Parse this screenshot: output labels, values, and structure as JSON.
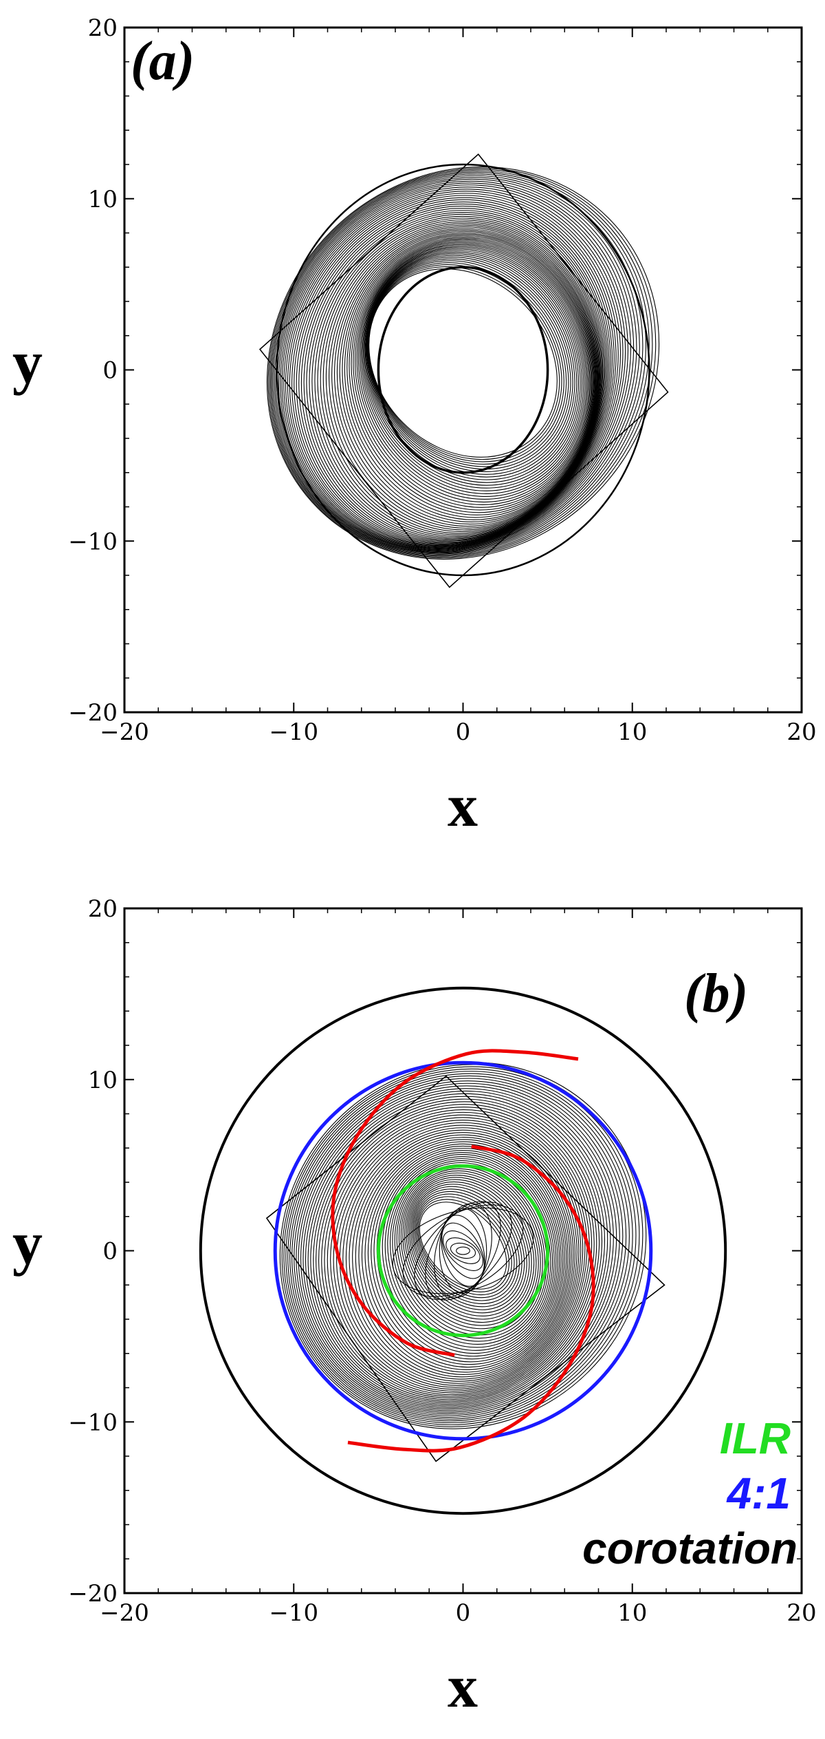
{
  "chart_data": [
    {
      "type": "line",
      "panel_label": "(a)",
      "xlabel": "x",
      "ylabel": "y",
      "xlim": [
        -20,
        20
      ],
      "ylim": [
        -20,
        20
      ],
      "xticks": [
        -20,
        -10,
        0,
        10,
        20
      ],
      "yticks": [
        -20,
        -10,
        0,
        10,
        20
      ],
      "xtick_labels": [
        "−20",
        "−10",
        "0",
        "10",
        "20"
      ],
      "ytick_labels": [
        "−20",
        "−10",
        "0",
        "10",
        "20"
      ],
      "grid": false,
      "series": [
        {
          "kind": "orbit_envelope",
          "color": "#000000",
          "inner_ellipse": {
            "cx": 0,
            "cy": 0,
            "rx": 5,
            "ry": 6
          },
          "outer_ring": {
            "rx": 11,
            "ry": 12
          },
          "outer_square_vertices": [
            [
              0.9,
              12.6
            ],
            [
              12.1,
              -1.3
            ],
            [
              -0.8,
              -12.7
            ],
            [
              -12.0,
              1.2
            ]
          ],
          "loops": 60
        }
      ]
    },
    {
      "type": "line",
      "panel_label": "(b)",
      "xlabel": "x",
      "ylabel": "y",
      "xlim": [
        -20,
        20
      ],
      "ylim": [
        -20,
        20
      ],
      "xticks": [
        -20,
        -10,
        0,
        10,
        20
      ],
      "yticks": [
        -20,
        -10,
        0,
        10,
        20
      ],
      "xtick_labels": [
        "−20",
        "−10",
        "0",
        "10",
        "20"
      ],
      "ytick_labels": [
        "−20",
        "−10",
        "0",
        "10",
        "20"
      ],
      "grid": false,
      "legend_position": "bottom-right",
      "series": [
        {
          "name": "ILR",
          "kind": "circle",
          "radius": 5.0,
          "color": "#22dd22"
        },
        {
          "name": "4:1",
          "kind": "circle",
          "radius": 11.1,
          "color": "#1a1aff"
        },
        {
          "name": "corotation",
          "kind": "circle",
          "radius": 15.5,
          "color": "#000000"
        },
        {
          "kind": "spiral_arms",
          "color": "#ee0000",
          "arm_1": [
            [
              0.5,
              6.1
            ],
            [
              3.3,
              5.4
            ],
            [
              5.9,
              3.2
            ],
            [
              7.4,
              0.2
            ],
            [
              7.6,
              -3.3
            ],
            [
              6.2,
              -6.8
            ],
            [
              3.5,
              -9.8
            ],
            [
              -0.2,
              -11.5
            ],
            [
              -3.5,
              -11.6
            ],
            [
              -6.8,
              -11.2
            ]
          ],
          "arm_2": [
            [
              -0.5,
              -6.1
            ],
            [
              -3.3,
              -5.4
            ],
            [
              -5.9,
              -3.2
            ],
            [
              -7.4,
              -0.2
            ],
            [
              -7.6,
              3.3
            ],
            [
              -6.2,
              6.8
            ],
            [
              -3.5,
              9.8
            ],
            [
              0.2,
              11.5
            ],
            [
              3.5,
              11.6
            ],
            [
              6.8,
              11.2
            ]
          ]
        },
        {
          "kind": "orbit_envelope",
          "color": "#000000",
          "outer_square_vertices": [
            [
              -1.0,
              10.2
            ],
            [
              11.9,
              -2.0
            ],
            [
              -1.6,
              -12.3
            ],
            [
              -11.6,
              1.9
            ]
          ],
          "loops": 60
        }
      ]
    }
  ]
}
